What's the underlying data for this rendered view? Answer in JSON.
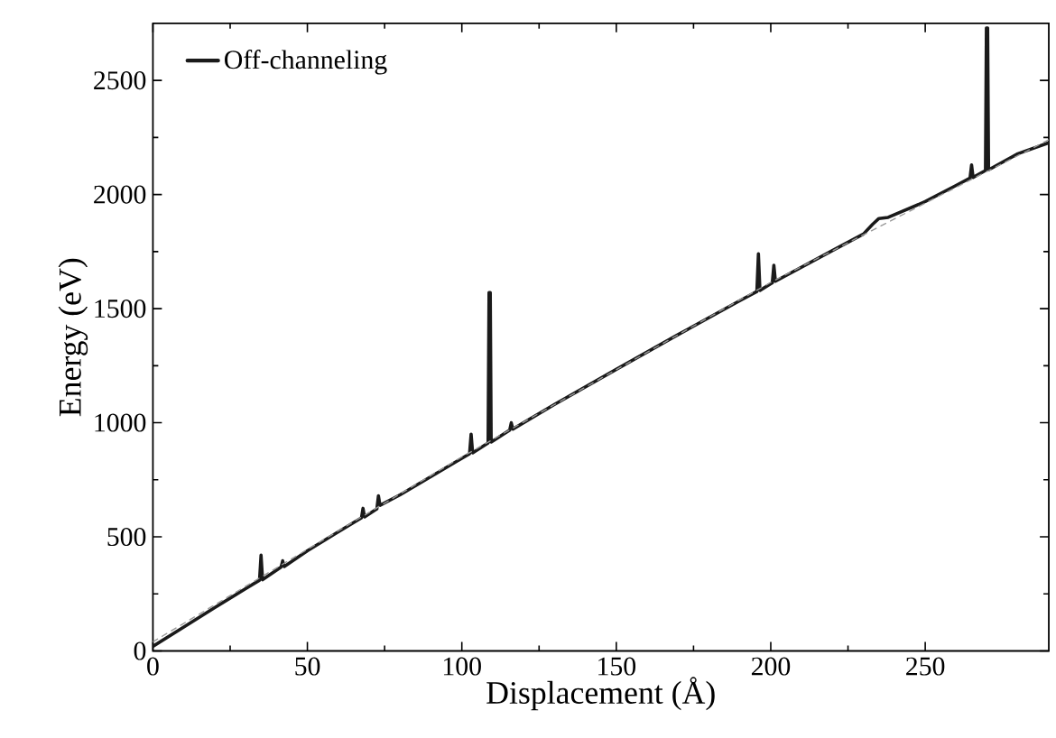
{
  "chart_data": {
    "type": "line",
    "xlabel": "Displacement (Å)",
    "ylabel": "Energy (eV)",
    "xlim": [
      0,
      290
    ],
    "ylim": [
      0,
      2750
    ],
    "xticks": [
      0,
      50,
      100,
      150,
      200,
      250
    ],
    "yticks": [
      0,
      500,
      1000,
      1500,
      2000,
      2500
    ],
    "legend": "top left",
    "grid": false,
    "marker": "none",
    "series": [
      {
        "name": "Off-channeling",
        "color": "#1a1a1a",
        "line_style": "solid",
        "x": [
          0,
          10,
          20,
          30,
          34.5,
          35,
          35.5,
          41.5,
          42,
          42.5,
          50,
          60,
          67.5,
          68,
          68.5,
          72.5,
          73,
          73.5,
          80,
          90,
          100,
          102.5,
          103,
          103.5,
          108.5,
          108.8,
          109.2,
          109.5,
          115.5,
          116,
          116.5,
          130,
          150,
          170,
          190,
          195.5,
          196,
          196.5,
          200,
          200.5,
          201,
          201.5,
          220,
          230,
          233,
          235,
          238,
          250,
          260,
          264.5,
          265,
          265.5,
          269.5,
          269.8,
          270.2,
          270.5,
          280,
          290
        ],
        "values": [
          20,
          105,
          190,
          273,
          310,
          420,
          312,
          368,
          395,
          370,
          439,
          522,
          583,
          625,
          587,
          623,
          680,
          638,
          684,
          764,
          844,
          864,
          950,
          868,
          911,
          1570,
          1570,
          915,
          968,
          1000,
          972,
          1080,
          1234,
          1386,
          1535,
          1575,
          1740,
          1580,
          1609,
          1613,
          1690,
          1620,
          1755,
          1827,
          1870,
          1895,
          1900,
          1969,
          2040,
          2072,
          2130,
          2075,
          2105,
          2730,
          2730,
          2108,
          2179,
          2227
        ]
      },
      {
        "color": "#999999",
        "line_style": "dashed",
        "x": [
          0,
          100,
          200,
          290
        ],
        "values": [
          40,
          850,
          1615,
          2240
        ]
      }
    ]
  }
}
